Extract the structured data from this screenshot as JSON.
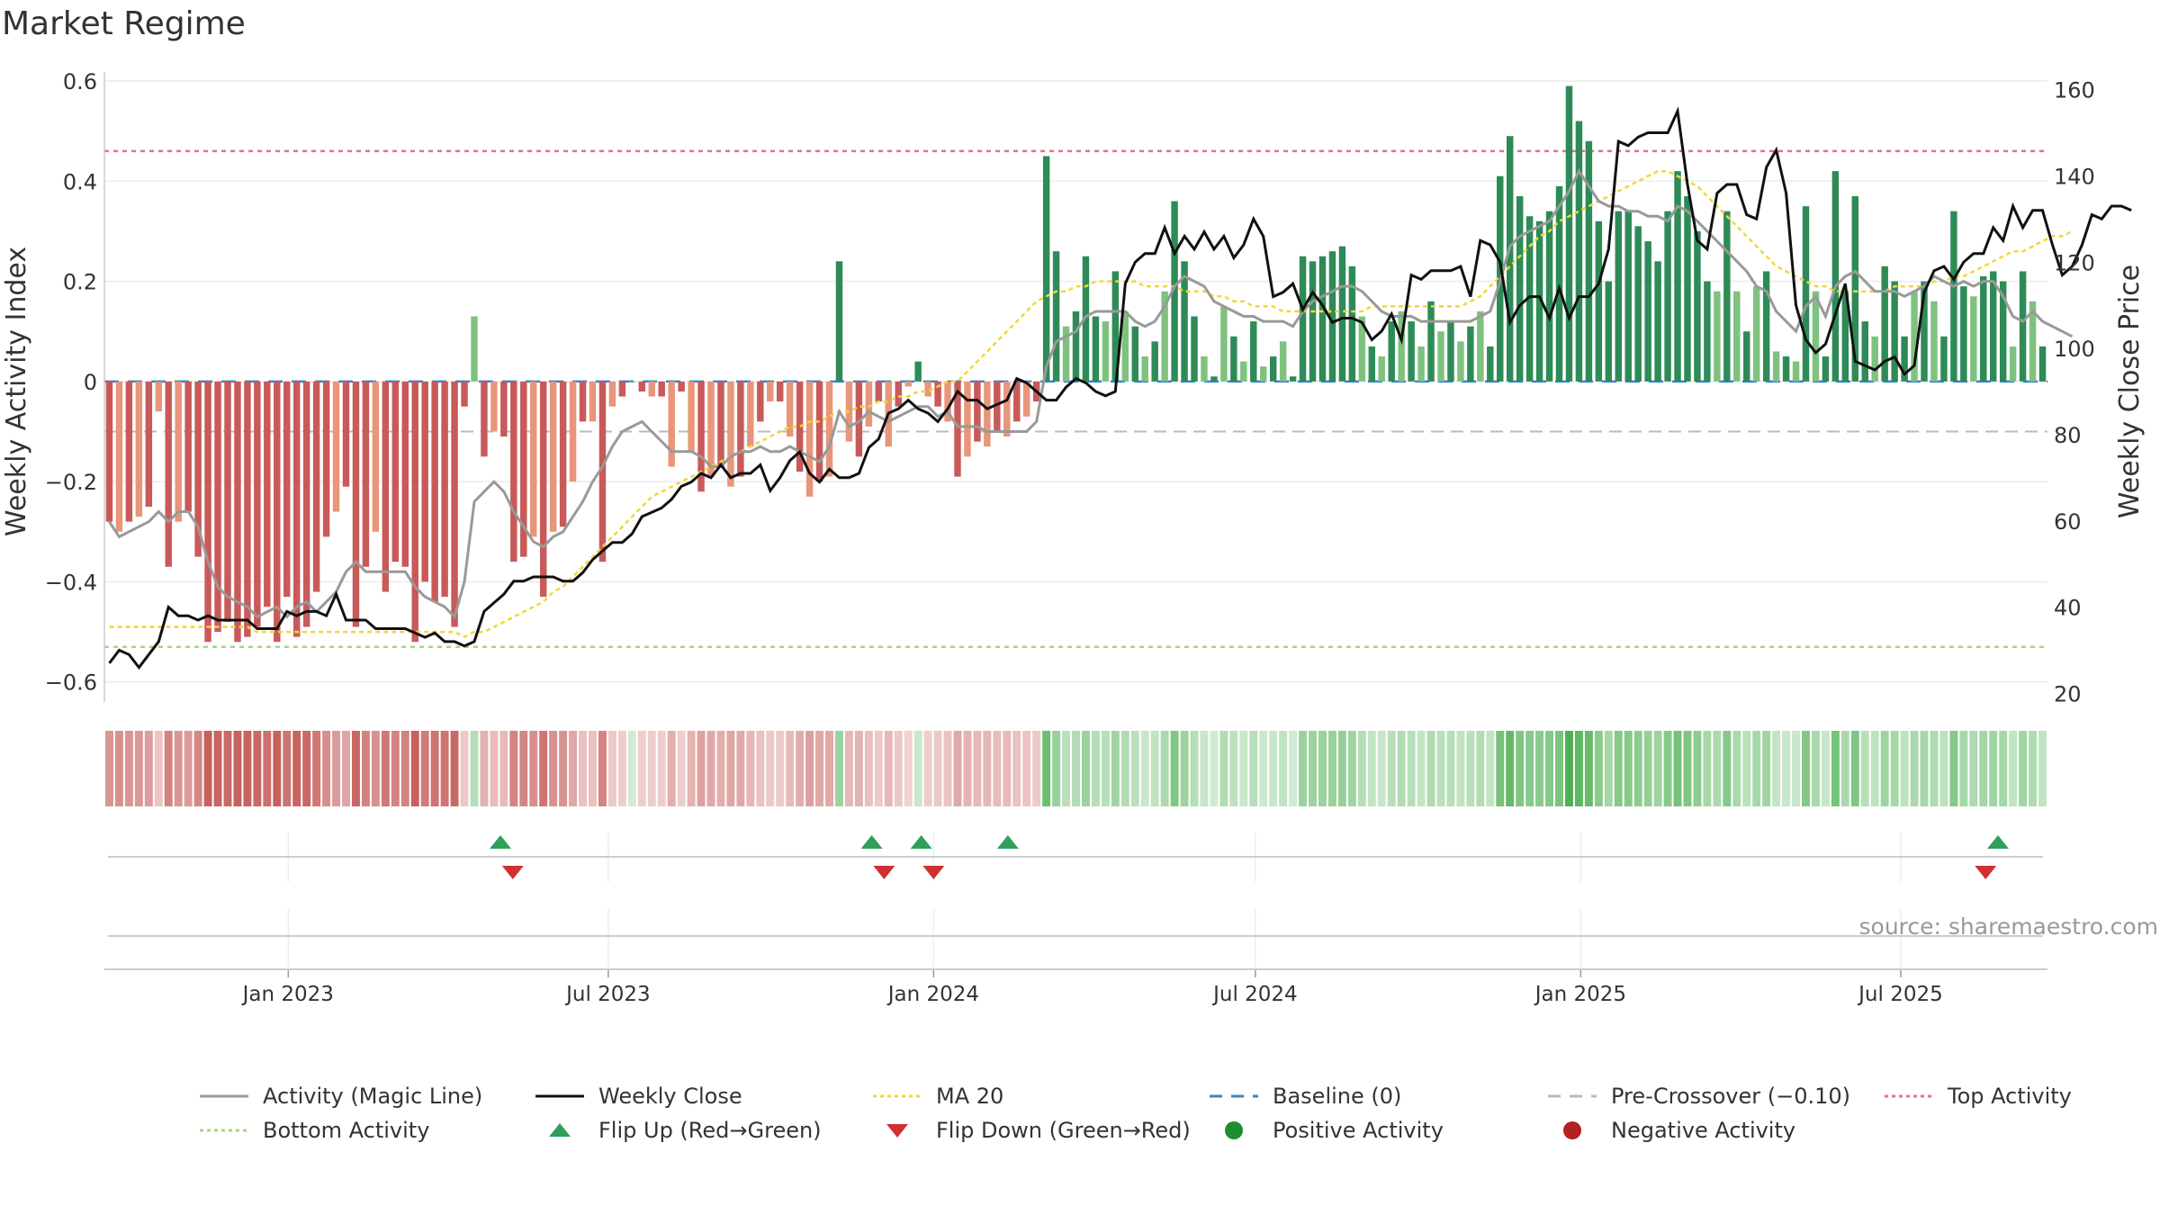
{
  "title": "Market Regime",
  "source": "source: sharemaestro.com",
  "colors": {
    "neg_dark": "#c85a5a",
    "neg_light": "#e8967a",
    "pos_dark": "#2e8b57",
    "pos_light": "#7fc27f",
    "close": "#111111",
    "magic": "#999999",
    "ma20": "#f0d838",
    "baseline": "#3a84c4",
    "pre": "#bbbbbb",
    "top": "#e8708a",
    "bottom": "#a8d878",
    "flip_up": "#2ea05a",
    "flip_down": "#d03030"
  },
  "legend": [
    {
      "label": "Activity (Magic Line)",
      "style": "line-gray"
    },
    {
      "label": "Weekly Close",
      "style": "line-black"
    },
    {
      "label": "MA 20",
      "style": "dot-yellow"
    },
    {
      "label": "Baseline (0)",
      "style": "dash-blue"
    },
    {
      "label": "Pre-Crossover (−0.10)",
      "style": "dash-gray"
    },
    {
      "label": "Top Activity",
      "style": "dot-red"
    },
    {
      "label": "Bottom Activity",
      "style": "dot-green"
    },
    {
      "label": "Flip Up (Red→Green)",
      "style": "tri-up"
    },
    {
      "label": "Flip Down (Green→Red)",
      "style": "tri-down"
    },
    {
      "label": "Positive Activity",
      "style": "circle-green"
    },
    {
      "label": "Negative Activity",
      "style": "circle-red"
    }
  ],
  "chart_data": {
    "type": "bar",
    "ylabel": "Weekly Activity Index",
    "y2label": "Weekly Close Price",
    "ylim": [
      -0.64,
      0.6
    ],
    "y2lim": [
      18,
      162
    ],
    "yticks": [
      "0.6",
      "0.4",
      "0.2",
      "0",
      "−0.2",
      "−0.4",
      "−0.6"
    ],
    "ytick_values": [
      0.6,
      0.4,
      0.2,
      0,
      -0.2,
      -0.4,
      -0.6
    ],
    "y2ticks": [
      160,
      140,
      120,
      100,
      80,
      60,
      40,
      20
    ],
    "x_start": "2022-09-19",
    "x_end": "2025-09-22",
    "x_ticks": [
      {
        "label": "Jan 2023",
        "date": "2023-01-01"
      },
      {
        "label": "Jul 2023",
        "date": "2023-07-01"
      },
      {
        "label": "Jan 2024",
        "date": "2024-01-01"
      },
      {
        "label": "Jul 2024",
        "date": "2024-07-01"
      },
      {
        "label": "Jan 2025",
        "date": "2025-01-01"
      },
      {
        "label": "Jul 2025",
        "date": "2025-07-01"
      }
    ],
    "hlines": {
      "baseline": 0,
      "pre_crossover": -0.1,
      "top": 0.46,
      "bottom": -0.53
    },
    "activity": [
      -0.28,
      -0.3,
      -0.28,
      -0.27,
      -0.25,
      -0.06,
      -0.37,
      -0.28,
      -0.26,
      -0.35,
      -0.52,
      -0.5,
      -0.48,
      -0.52,
      -0.51,
      -0.49,
      -0.45,
      -0.52,
      -0.43,
      -0.51,
      -0.49,
      -0.42,
      -0.31,
      -0.26,
      -0.21,
      -0.49,
      -0.37,
      -0.3,
      -0.42,
      -0.36,
      -0.37,
      -0.52,
      -0.4,
      -0.44,
      -0.43,
      -0.49,
      -0.05,
      0.13,
      -0.15,
      -0.1,
      -0.11,
      -0.36,
      -0.35,
      -0.31,
      -0.43,
      -0.3,
      -0.29,
      -0.2,
      -0.08,
      -0.08,
      -0.36,
      -0.05,
      -0.03,
      0,
      -0.02,
      -0.03,
      -0.03,
      -0.17,
      -0.02,
      -0.14,
      -0.22,
      -0.19,
      -0.17,
      -0.21,
      -0.19,
      -0.13,
      -0.08,
      -0.04,
      -0.04,
      -0.11,
      -0.18,
      -0.23,
      -0.2,
      -0.19,
      0.24,
      -0.12,
      -0.15,
      -0.09,
      -0.04,
      -0.13,
      -0.05,
      -0.01,
      0.04,
      -0.03,
      -0.05,
      -0.08,
      -0.19,
      -0.15,
      -0.12,
      -0.13,
      -0.1,
      -0.11,
      -0.08,
      -0.07,
      -0.04,
      0.45,
      0.26,
      0.11,
      0.14,
      0.25,
      0.13,
      0.12,
      0.22,
      0.14,
      0.11,
      0.05,
      0.08,
      0.18,
      0.36,
      0.24,
      0.13,
      0.05,
      0.01,
      0.15,
      0.09,
      0.04,
      0.12,
      0.03,
      0.05,
      0.08,
      0.01,
      0.25,
      0.24,
      0.25,
      0.26,
      0.27,
      0.23,
      0.13,
      0.07,
      0.05,
      0.12,
      0.14,
      0.12,
      0.07,
      0.16,
      0.1,
      0.12,
      0.08,
      0.11,
      0.14,
      0.07,
      0.41,
      0.49,
      0.37,
      0.33,
      0.32,
      0.34,
      0.39,
      0.59,
      0.52,
      0.48,
      0.32,
      0.2,
      0.34,
      0.34,
      0.31,
      0.28,
      0.24,
      0.34,
      0.42,
      0.37,
      0.3,
      0.2,
      0.18,
      0.34,
      0.18,
      0.1,
      0.19,
      0.22,
      0.06,
      0.05,
      0.04,
      0.35,
      0.18,
      0.05,
      0.42,
      0.18,
      0.37,
      0.12,
      0.09,
      0.23,
      0.2,
      0.09,
      0.18,
      0.2,
      0.16,
      0.09,
      0.34,
      0.19,
      0.17,
      0.21,
      0.22,
      0.2,
      0.07,
      0.22,
      0.16,
      0.07
    ],
    "close": [
      27,
      30,
      29,
      26,
      29,
      32,
      40,
      38,
      38,
      37,
      38,
      37,
      37,
      37,
      37,
      35,
      35,
      35,
      39,
      38,
      39,
      39,
      38,
      43,
      37,
      37,
      37,
      35,
      35,
      35,
      35,
      34,
      33,
      34,
      32,
      32,
      31,
      32,
      39,
      41,
      43,
      46,
      46,
      47,
      47,
      47,
      46,
      46,
      48,
      51,
      53,
      55,
      55,
      57,
      61,
      62,
      63,
      65,
      68,
      69,
      71,
      70,
      73,
      70,
      71,
      71,
      73,
      67,
      70,
      74,
      76,
      71,
      69,
      72,
      70,
      70,
      71,
      77,
      79,
      85,
      86,
      88,
      86,
      85,
      83,
      86,
      90,
      88,
      88,
      86,
      87,
      88,
      93,
      92,
      90,
      88,
      88,
      91,
      93,
      92,
      90,
      89,
      90,
      115,
      120,
      122,
      122,
      128,
      122,
      126,
      123,
      127,
      123,
      126,
      121,
      124,
      130,
      126,
      112,
      113,
      115,
      109,
      113,
      110,
      106,
      107,
      107,
      106,
      102,
      104,
      108,
      102,
      117,
      116,
      118,
      118,
      118,
      119,
      112,
      125,
      124,
      120,
      106,
      110,
      112,
      112,
      107,
      114,
      107,
      112,
      112,
      115,
      123,
      148,
      147,
      149,
      150,
      150,
      150,
      155,
      138,
      125,
      123,
      136,
      138,
      138,
      131,
      130,
      142,
      146,
      136,
      110,
      102,
      99,
      101,
      108,
      115,
      97,
      96,
      95,
      97,
      98,
      94,
      96,
      113,
      118,
      119,
      116,
      120,
      122,
      122,
      128,
      125,
      133,
      128,
      132,
      132,
      124,
      117,
      119,
      124,
      131,
      130,
      133,
      133,
      132
    ],
    "magic": [
      -0.28,
      -0.31,
      -0.3,
      -0.29,
      -0.28,
      -0.26,
      -0.28,
      -0.26,
      -0.26,
      -0.29,
      -0.36,
      -0.41,
      -0.43,
      -0.44,
      -0.45,
      -0.47,
      -0.46,
      -0.45,
      -0.47,
      -0.45,
      -0.44,
      -0.46,
      -0.44,
      -0.42,
      -0.38,
      -0.36,
      -0.38,
      -0.38,
      -0.38,
      -0.38,
      -0.38,
      -0.41,
      -0.43,
      -0.44,
      -0.45,
      -0.47,
      -0.4,
      -0.24,
      -0.22,
      -0.2,
      -0.22,
      -0.26,
      -0.29,
      -0.32,
      -0.33,
      -0.31,
      -0.3,
      -0.27,
      -0.24,
      -0.2,
      -0.17,
      -0.13,
      -0.1,
      -0.09,
      -0.08,
      -0.1,
      -0.12,
      -0.14,
      -0.14,
      -0.14,
      -0.15,
      -0.17,
      -0.17,
      -0.15,
      -0.14,
      -0.14,
      -0.13,
      -0.14,
      -0.14,
      -0.13,
      -0.14,
      -0.15,
      -0.16,
      -0.13,
      -0.06,
      -0.09,
      -0.08,
      -0.06,
      -0.07,
      -0.08,
      -0.07,
      -0.06,
      -0.05,
      -0.05,
      -0.07,
      -0.06,
      -0.09,
      -0.09,
      -0.09,
      -0.1,
      -0.1,
      -0.1,
      -0.1,
      -0.1,
      -0.08,
      0.03,
      0.08,
      0.09,
      0.1,
      0.13,
      0.14,
      0.14,
      0.14,
      0.14,
      0.12,
      0.11,
      0.12,
      0.15,
      0.19,
      0.21,
      0.2,
      0.19,
      0.16,
      0.15,
      0.14,
      0.13,
      0.13,
      0.12,
      0.12,
      0.12,
      0.11,
      0.14,
      0.16,
      0.17,
      0.18,
      0.19,
      0.19,
      0.18,
      0.16,
      0.14,
      0.13,
      0.13,
      0.13,
      0.12,
      0.12,
      0.12,
      0.12,
      0.12,
      0.12,
      0.13,
      0.14,
      0.2,
      0.27,
      0.29,
      0.3,
      0.31,
      0.32,
      0.35,
      0.38,
      0.42,
      0.39,
      0.36,
      0.35,
      0.35,
      0.34,
      0.34,
      0.33,
      0.33,
      0.32,
      0.35,
      0.34,
      0.32,
      0.3,
      0.28,
      0.26,
      0.24,
      0.22,
      0.19,
      0.18,
      0.14,
      0.12,
      0.1,
      0.15,
      0.17,
      0.13,
      0.19,
      0.21,
      0.22,
      0.2,
      0.18,
      0.18,
      0.18,
      0.17,
      0.18,
      0.19,
      0.21,
      0.2,
      0.19,
      0.2,
      0.19,
      0.2,
      0.2,
      0.17,
      0.13,
      0.12,
      0.14,
      0.12,
      0.11,
      0.1,
      0.09
    ],
    "ma20": [
      -0.49,
      -0.49,
      -0.49,
      -0.49,
      -0.49,
      -0.49,
      -0.49,
      -0.49,
      -0.49,
      -0.49,
      -0.49,
      -0.49,
      -0.49,
      -0.49,
      -0.49,
      -0.5,
      -0.5,
      -0.5,
      -0.5,
      -0.5,
      -0.5,
      -0.5,
      -0.5,
      -0.5,
      -0.5,
      -0.5,
      -0.5,
      -0.5,
      -0.5,
      -0.5,
      -0.5,
      -0.5,
      -0.5,
      -0.5,
      -0.5,
      -0.5,
      -0.51,
      -0.5,
      -0.5,
      -0.49,
      -0.48,
      -0.47,
      -0.46,
      -0.45,
      -0.44,
      -0.42,
      -0.41,
      -0.39,
      -0.37,
      -0.35,
      -0.33,
      -0.31,
      -0.29,
      -0.27,
      -0.25,
      -0.23,
      -0.22,
      -0.21,
      -0.2,
      -0.19,
      -0.18,
      -0.17,
      -0.16,
      -0.15,
      -0.14,
      -0.13,
      -0.12,
      -0.11,
      -0.1,
      -0.09,
      -0.09,
      -0.08,
      -0.08,
      -0.07,
      -0.06,
      -0.06,
      -0.05,
      -0.05,
      -0.04,
      -0.04,
      -0.03,
      -0.03,
      -0.02,
      -0.02,
      -0.01,
      0,
      0,
      0.02,
      0.04,
      0.06,
      0.08,
      0.1,
      0.12,
      0.14,
      0.16,
      0.17,
      0.18,
      0.18,
      0.19,
      0.19,
      0.2,
      0.2,
      0.2,
      0.2,
      0.2,
      0.19,
      0.19,
      0.19,
      0.19,
      0.18,
      0.18,
      0.18,
      0.17,
      0.17,
      0.16,
      0.16,
      0.15,
      0.15,
      0.15,
      0.14,
      0.14,
      0.14,
      0.14,
      0.14,
      0.14,
      0.14,
      0.14,
      0.14,
      0.15,
      0.15,
      0.15,
      0.15,
      0.15,
      0.15,
      0.15,
      0.15,
      0.15,
      0.15,
      0.16,
      0.17,
      0.19,
      0.21,
      0.23,
      0.25,
      0.27,
      0.29,
      0.3,
      0.32,
      0.33,
      0.34,
      0.35,
      0.36,
      0.37,
      0.38,
      0.39,
      0.4,
      0.41,
      0.42,
      0.42,
      0.41,
      0.4,
      0.39,
      0.37,
      0.35,
      0.33,
      0.31,
      0.29,
      0.27,
      0.25,
      0.23,
      0.22,
      0.21,
      0.2,
      0.19,
      0.19,
      0.18,
      0.18,
      0.18,
      0.18,
      0.18,
      0.18,
      0.19,
      0.19,
      0.19,
      0.19,
      0.2,
      0.2,
      0.21,
      0.21,
      0.22,
      0.23,
      0.24,
      0.25,
      0.26,
      0.26,
      0.27,
      0.28,
      0.29,
      0.29,
      0.3
    ],
    "flip_up_dates": [
      "2023-05-01",
      "2023-11-27",
      "2023-12-25",
      "2024-02-12",
      "2025-08-25"
    ],
    "flip_down_dates": [
      "2023-05-08",
      "2023-12-04",
      "2024-01-01",
      "2025-08-18"
    ]
  }
}
